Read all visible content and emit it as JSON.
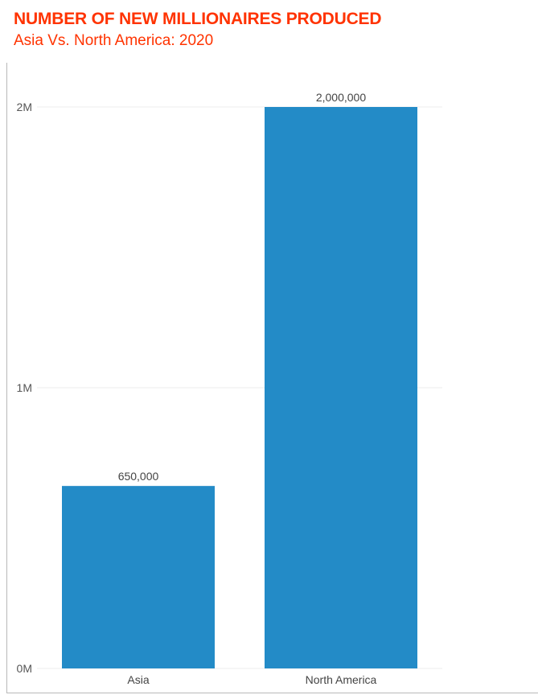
{
  "header": {
    "title": "NUMBER OF NEW MILLIONAIRES PRODUCED",
    "subtitle": "Asia Vs. North America: 2020"
  },
  "colors": {
    "title": "#ff3300",
    "bar": "#238bc7",
    "grid": "#ececec"
  },
  "chart_data": {
    "type": "bar",
    "title": "NUMBER OF NEW MILLIONAIRES PRODUCED",
    "subtitle": "Asia Vs. North America: 2020",
    "categories": [
      "Asia",
      "North America"
    ],
    "values": [
      650000,
      2000000
    ],
    "data_labels": [
      "650,000",
      "2,000,000"
    ],
    "yticks": [
      0,
      1000000,
      2000000
    ],
    "ytick_labels": [
      "0M",
      "1M",
      "2M"
    ],
    "ylim": [
      0,
      2000000
    ],
    "xlabel": "",
    "ylabel": "",
    "grid": true,
    "legend": "none"
  }
}
